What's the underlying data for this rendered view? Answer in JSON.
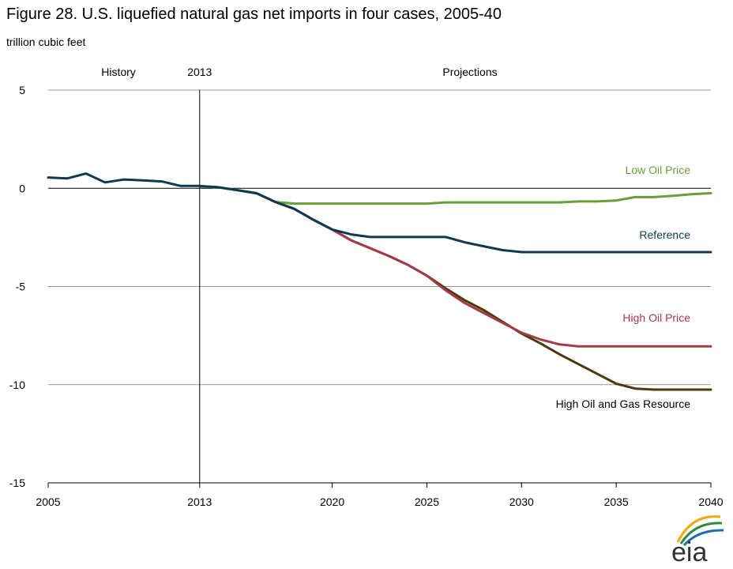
{
  "chart_data": {
    "type": "line",
    "title": "Figure 28. U.S. liquefied natural gas net imports in four cases, 2005-40",
    "unit_label": "trillion cubic feet",
    "xlim": [
      2005,
      2040
    ],
    "ylim": [
      -15,
      5
    ],
    "x_ticks": [
      "2005",
      "2013",
      "2020",
      "2025",
      "2030",
      "2035",
      "2040"
    ],
    "y_ticks": [
      "5",
      "0",
      "-5",
      "-10",
      "-15"
    ],
    "grid": "horizontal",
    "divider_year": 2013,
    "annotations": {
      "history": "History",
      "divider": "2013",
      "projections": "Projections"
    },
    "series": [
      {
        "name": "Low Oil Price",
        "color": "#6a9e3a",
        "points": [
          [
            2013,
            0.1
          ],
          [
            2014,
            0.05
          ],
          [
            2015,
            -0.1
          ],
          [
            2016,
            -0.25
          ],
          [
            2017,
            -0.7
          ],
          [
            2018,
            -0.78
          ],
          [
            2019,
            -0.78
          ],
          [
            2020,
            -0.78
          ],
          [
            2021,
            -0.78
          ],
          [
            2022,
            -0.78
          ],
          [
            2023,
            -0.78
          ],
          [
            2024,
            -0.78
          ],
          [
            2025,
            -0.78
          ],
          [
            2026,
            -0.72
          ],
          [
            2027,
            -0.72
          ],
          [
            2028,
            -0.72
          ],
          [
            2029,
            -0.72
          ],
          [
            2030,
            -0.72
          ],
          [
            2031,
            -0.72
          ],
          [
            2032,
            -0.72
          ],
          [
            2033,
            -0.67
          ],
          [
            2034,
            -0.67
          ],
          [
            2035,
            -0.62
          ],
          [
            2036,
            -0.45
          ],
          [
            2037,
            -0.45
          ],
          [
            2038,
            -0.38
          ],
          [
            2039,
            -0.3
          ],
          [
            2040,
            -0.25
          ]
        ]
      },
      {
        "name": "Reference",
        "color": "#0e3a50",
        "points": [
          [
            2005,
            0.55
          ],
          [
            2006,
            0.5
          ],
          [
            2007,
            0.75
          ],
          [
            2008,
            0.3
          ],
          [
            2009,
            0.45
          ],
          [
            2010,
            0.4
          ],
          [
            2011,
            0.35
          ],
          [
            2012,
            0.12
          ],
          [
            2013,
            0.12
          ],
          [
            2014,
            0.05
          ],
          [
            2015,
            -0.1
          ],
          [
            2016,
            -0.25
          ],
          [
            2017,
            -0.7
          ],
          [
            2018,
            -1.05
          ],
          [
            2019,
            -1.6
          ],
          [
            2020,
            -2.1
          ],
          [
            2021,
            -2.35
          ],
          [
            2022,
            -2.48
          ],
          [
            2023,
            -2.48
          ],
          [
            2024,
            -2.48
          ],
          [
            2025,
            -2.48
          ],
          [
            2026,
            -2.48
          ],
          [
            2027,
            -2.75
          ],
          [
            2028,
            -2.95
          ],
          [
            2029,
            -3.15
          ],
          [
            2030,
            -3.25
          ],
          [
            2031,
            -3.25
          ],
          [
            2032,
            -3.25
          ],
          [
            2033,
            -3.25
          ],
          [
            2034,
            -3.25
          ],
          [
            2035,
            -3.25
          ],
          [
            2036,
            -3.25
          ],
          [
            2037,
            -3.25
          ],
          [
            2038,
            -3.25
          ],
          [
            2039,
            -3.25
          ],
          [
            2040,
            -3.25
          ]
        ]
      },
      {
        "name": "High Oil Price",
        "color": "#a53a48",
        "points": [
          [
            2013,
            0.1
          ],
          [
            2014,
            0.05
          ],
          [
            2015,
            -0.1
          ],
          [
            2016,
            -0.25
          ],
          [
            2017,
            -0.7
          ],
          [
            2018,
            -1.05
          ],
          [
            2019,
            -1.6
          ],
          [
            2020,
            -2.1
          ],
          [
            2021,
            -2.65
          ],
          [
            2022,
            -3.05
          ],
          [
            2023,
            -3.45
          ],
          [
            2024,
            -3.9
          ],
          [
            2025,
            -4.45
          ],
          [
            2026,
            -5.2
          ],
          [
            2027,
            -5.85
          ],
          [
            2028,
            -6.35
          ],
          [
            2029,
            -6.85
          ],
          [
            2030,
            -7.35
          ],
          [
            2031,
            -7.7
          ],
          [
            2032,
            -7.95
          ],
          [
            2033,
            -8.05
          ],
          [
            2034,
            -8.05
          ],
          [
            2035,
            -8.05
          ],
          [
            2036,
            -8.05
          ],
          [
            2037,
            -8.05
          ],
          [
            2038,
            -8.05
          ],
          [
            2039,
            -8.05
          ],
          [
            2040,
            -8.05
          ]
        ]
      },
      {
        "name": "High Oil and Gas Resource",
        "color": "#4a3a0c",
        "points": [
          [
            2013,
            0.1
          ],
          [
            2014,
            0.05
          ],
          [
            2015,
            -0.1
          ],
          [
            2016,
            -0.25
          ],
          [
            2017,
            -0.7
          ],
          [
            2018,
            -1.05
          ],
          [
            2019,
            -1.6
          ],
          [
            2020,
            -2.1
          ],
          [
            2021,
            -2.65
          ],
          [
            2022,
            -3.05
          ],
          [
            2023,
            -3.45
          ],
          [
            2024,
            -3.9
          ],
          [
            2025,
            -4.45
          ],
          [
            2026,
            -5.1
          ],
          [
            2027,
            -5.7
          ],
          [
            2028,
            -6.2
          ],
          [
            2029,
            -6.8
          ],
          [
            2030,
            -7.4
          ],
          [
            2031,
            -7.9
          ],
          [
            2032,
            -8.45
          ],
          [
            2033,
            -8.95
          ],
          [
            2034,
            -9.45
          ],
          [
            2035,
            -9.95
          ],
          [
            2036,
            -10.2
          ],
          [
            2037,
            -10.25
          ],
          [
            2038,
            -10.25
          ],
          [
            2039,
            -10.25
          ],
          [
            2040,
            -10.25
          ]
        ]
      }
    ]
  },
  "logo": {
    "text": "eia",
    "arc_colors": [
      "#f2a900",
      "#2e8b3e",
      "#1f6fb5"
    ]
  }
}
